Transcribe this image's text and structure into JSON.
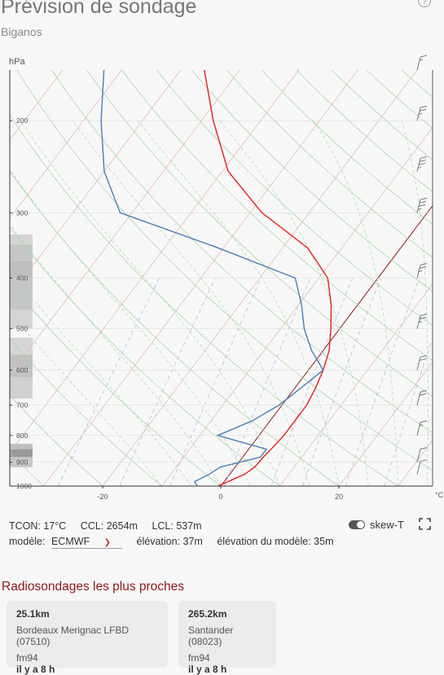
{
  "header": {
    "title": "Prévision de sondage",
    "subtitle": "Biganos"
  },
  "chart_data": {
    "type": "line",
    "chart_kind": "skew-T log-P sounding",
    "ylabel": "hPa",
    "xlabel": "°C",
    "y_scale": "log",
    "y_reversed": true,
    "ylim": [
      1000,
      160
    ],
    "xlim": [
      -35,
      35
    ],
    "y_ticks": [
      200,
      300,
      400,
      500,
      600,
      700,
      800,
      900,
      1000
    ],
    "x_ticks": [
      -20,
      0,
      20
    ],
    "skew": true,
    "series": [
      {
        "color": "#e81c1c",
        "points": [
          [
            1000,
            -0.5
          ],
          [
            950,
            2.5
          ],
          [
            920,
            3.3
          ],
          [
            880,
            3.5
          ],
          [
            850,
            3.8
          ],
          [
            800,
            4.2
          ],
          [
            700,
            4.2
          ],
          [
            650,
            3.5
          ],
          [
            600,
            2.5
          ],
          [
            550,
            1.0
          ],
          [
            500,
            -1.5
          ],
          [
            450,
            -4.5
          ],
          [
            400,
            -8.5
          ],
          [
            350,
            -15.8
          ],
          [
            300,
            -28.0
          ],
          [
            250,
            -39.0
          ],
          [
            200,
            -48.0
          ],
          [
            160,
            -56.0
          ]
        ]
      },
      {
        "color": "#4a7fb5",
        "points": [
          [
            1000,
            -4.0
          ],
          [
            980,
            -5.0
          ],
          [
            950,
            -3.5
          ],
          [
            920,
            -2.5
          ],
          [
            880,
            3.0
          ],
          [
            850,
            3.0
          ],
          [
            800,
            -7.0
          ],
          [
            750,
            -3.0
          ],
          [
            700,
            -0.5
          ],
          [
            650,
            1.0
          ],
          [
            600,
            2.5
          ],
          [
            550,
            -2.0
          ],
          [
            500,
            -6.0
          ],
          [
            450,
            -9.5
          ],
          [
            400,
            -14.0
          ],
          [
            350,
            -31.0
          ],
          [
            300,
            -52.0
          ],
          [
            250,
            -60.0
          ],
          [
            200,
            -67.0
          ],
          [
            160,
            -73.0
          ]
        ]
      }
    ],
    "wind_barbs": [
      {
        "p": 160,
        "speed_kt": 15
      },
      {
        "p": 200,
        "speed_kt": 25
      },
      {
        "p": 250,
        "speed_kt": 35
      },
      {
        "p": 300,
        "speed_kt": 35
      },
      {
        "p": 400,
        "speed_kt": 25
      },
      {
        "p": 500,
        "speed_kt": 25
      },
      {
        "p": 600,
        "speed_kt": 20
      },
      {
        "p": 700,
        "speed_kt": 20
      },
      {
        "p": 800,
        "speed_kt": 15
      },
      {
        "p": 900,
        "speed_kt": 10
      },
      {
        "p": 950,
        "speed_kt": 10
      }
    ],
    "cloud_cover": [
      {
        "p_top": 330,
        "p_bot": 345,
        "level": 0.15
      },
      {
        "p_top": 345,
        "p_bot": 370,
        "level": 0.25
      },
      {
        "p_top": 370,
        "p_bot": 400,
        "level": 0.3
      },
      {
        "p_top": 400,
        "p_bot": 460,
        "level": 0.25
      },
      {
        "p_top": 460,
        "p_bot": 500,
        "level": 0.15
      },
      {
        "p_top": 520,
        "p_bot": 560,
        "level": 0.15
      },
      {
        "p_top": 560,
        "p_bot": 620,
        "level": 0.28
      },
      {
        "p_top": 620,
        "p_bot": 680,
        "level": 0.18
      },
      {
        "p_top": 830,
        "p_bot": 850,
        "level": 0.3
      },
      {
        "p_top": 850,
        "p_bot": 880,
        "level": 0.55
      },
      {
        "p_top": 880,
        "p_bot": 920,
        "level": 0.25
      }
    ],
    "colors": {
      "isotherm": "#e8b8b8",
      "dry_adiabat": "#a8d8a8",
      "moist_adiabat": "#a8d8a8",
      "mixing_ratio": "#b8b8e0",
      "zero_isotherm": "#8b1a1a"
    }
  },
  "info": {
    "tcon": "TCON: 17°C",
    "ccl": "CCL: 2654m",
    "lcl": "LCL: 537m",
    "model_label": "modèle:",
    "model_value": "ECMWF",
    "elevation": "élévation: 37m",
    "model_elevation": "élévation du modèle: 35m",
    "skewt_label": "skew-T"
  },
  "nearest": {
    "title": "Radiosondages les plus proches",
    "cards": [
      {
        "distance": "25.1km",
        "name": "Bordeaux Merignac LFBD (07510)",
        "type": "fm94",
        "ago": "il y a 8 h"
      },
      {
        "distance": "265.2km",
        "name": "Santander (08023)",
        "type": "fm94",
        "ago": "il y a 8 h"
      }
    ]
  }
}
